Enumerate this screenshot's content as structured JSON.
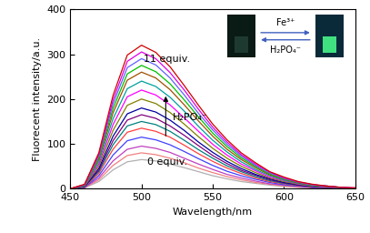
{
  "chart_data": {
    "type": "line",
    "x_label": "Wavelength/nm",
    "y_label": "Fluorecent intensity/a.u.",
    "x": [
      450,
      460,
      470,
      480,
      490,
      500,
      510,
      520,
      530,
      540,
      550,
      560,
      570,
      580,
      590,
      600,
      610,
      620,
      630,
      640,
      650
    ],
    "xlim": [
      450,
      650
    ],
    "xticks": [
      450,
      500,
      550,
      600,
      650
    ],
    "ylim": [
      0,
      400
    ],
    "yticks": [
      0,
      100,
      200,
      300,
      400
    ],
    "grid": false,
    "annotations": [
      "11 equiv.",
      "0 equiv.",
      "H₂PO₄⁻"
    ],
    "inset_labels": [
      "Fe³⁺",
      "H₂PO₄⁻"
    ],
    "series": [
      {
        "color": "#b0b0b0",
        "values": [
          0,
          2,
          16,
          42,
          60,
          65,
          62,
          55,
          47,
          38,
          29,
          22,
          16,
          12,
          8,
          5,
          3,
          2,
          1,
          1,
          0
        ]
      },
      {
        "color": "#f08080",
        "values": [
          0,
          2,
          20,
          52,
          74,
          80,
          76,
          68,
          58,
          46,
          36,
          27,
          20,
          14,
          10,
          6,
          4,
          2,
          2,
          1,
          0
        ]
      },
      {
        "color": "#c040c0",
        "values": [
          0,
          3,
          24,
          62,
          88,
          95,
          90,
          81,
          68,
          55,
          43,
          32,
          24,
          17,
          11,
          8,
          5,
          3,
          2,
          1,
          0
        ]
      },
      {
        "color": "#4040ff",
        "values": [
          0,
          3,
          29,
          75,
          107,
          115,
          109,
          98,
          83,
          67,
          52,
          39,
          29,
          21,
          14,
          9,
          6,
          3,
          2,
          1,
          1
        ]
      },
      {
        "color": "#ff4040",
        "values": [
          0,
          4,
          34,
          88,
          126,
          135,
          128,
          115,
          97,
          78,
          61,
          46,
          34,
          24,
          16,
          11,
          7,
          4,
          3,
          1,
          1
        ]
      },
      {
        "color": "#008080",
        "values": [
          0,
          5,
          38,
          98,
          140,
          150,
          143,
          128,
          108,
          87,
          68,
          51,
          38,
          27,
          18,
          12,
          8,
          5,
          3,
          2,
          1
        ]
      },
      {
        "color": "#800080",
        "values": [
          0,
          5,
          41,
          107,
          153,
          165,
          157,
          140,
          119,
          96,
          74,
          56,
          41,
          30,
          20,
          13,
          8,
          5,
          3,
          2,
          1
        ]
      },
      {
        "color": "#0000a0",
        "values": [
          0,
          5,
          45,
          117,
          167,
          180,
          171,
          153,
          130,
          104,
          81,
          61,
          45,
          32,
          22,
          14,
          9,
          5,
          4,
          2,
          1
        ]
      },
      {
        "color": "#808000",
        "values": [
          0,
          6,
          50,
          130,
          186,
          200,
          190,
          170,
          144,
          116,
          90,
          68,
          50,
          36,
          24,
          16,
          10,
          6,
          4,
          2,
          1
        ]
      },
      {
        "color": "#ff00ff",
        "values": [
          0,
          7,
          55,
          143,
          205,
          220,
          209,
          187,
          158,
          128,
          99,
          75,
          55,
          40,
          26,
          18,
          11,
          7,
          4,
          2,
          1
        ]
      },
      {
        "color": "#00a0a0",
        "values": [
          0,
          7,
          60,
          156,
          223,
          240,
          228,
          204,
          173,
          139,
          108,
          82,
          60,
          43,
          29,
          19,
          12,
          7,
          5,
          2,
          1
        ]
      },
      {
        "color": "#a05000",
        "values": [
          0,
          8,
          65,
          169,
          242,
          260,
          247,
          221,
          187,
          151,
          117,
          88,
          65,
          47,
          31,
          21,
          13,
          8,
          5,
          3,
          1
        ]
      },
      {
        "color": "#00c000",
        "values": [
          0,
          8,
          69,
          179,
          256,
          275,
          261,
          234,
          198,
          160,
          124,
          94,
          69,
          50,
          33,
          22,
          14,
          8,
          6,
          3,
          1
        ]
      },
      {
        "color": "#6060ff",
        "values": [
          0,
          9,
          73,
          189,
          270,
          290,
          276,
          247,
          209,
          168,
          131,
          99,
          73,
          52,
          35,
          23,
          15,
          9,
          6,
          3,
          1
        ]
      },
      {
        "color": "#e000e0",
        "values": [
          0,
          9,
          76,
          198,
          284,
          305,
          290,
          259,
          220,
          177,
          137,
          104,
          76,
          55,
          37,
          24,
          15,
          9,
          6,
          3,
          2
        ]
      },
      {
        "color": "#d00000",
        "values": [
          0,
          10,
          80,
          208,
          298,
          320,
          304,
          272,
          230,
          186,
          144,
          109,
          80,
          58,
          38,
          26,
          16,
          10,
          6,
          3,
          2
        ]
      }
    ]
  }
}
